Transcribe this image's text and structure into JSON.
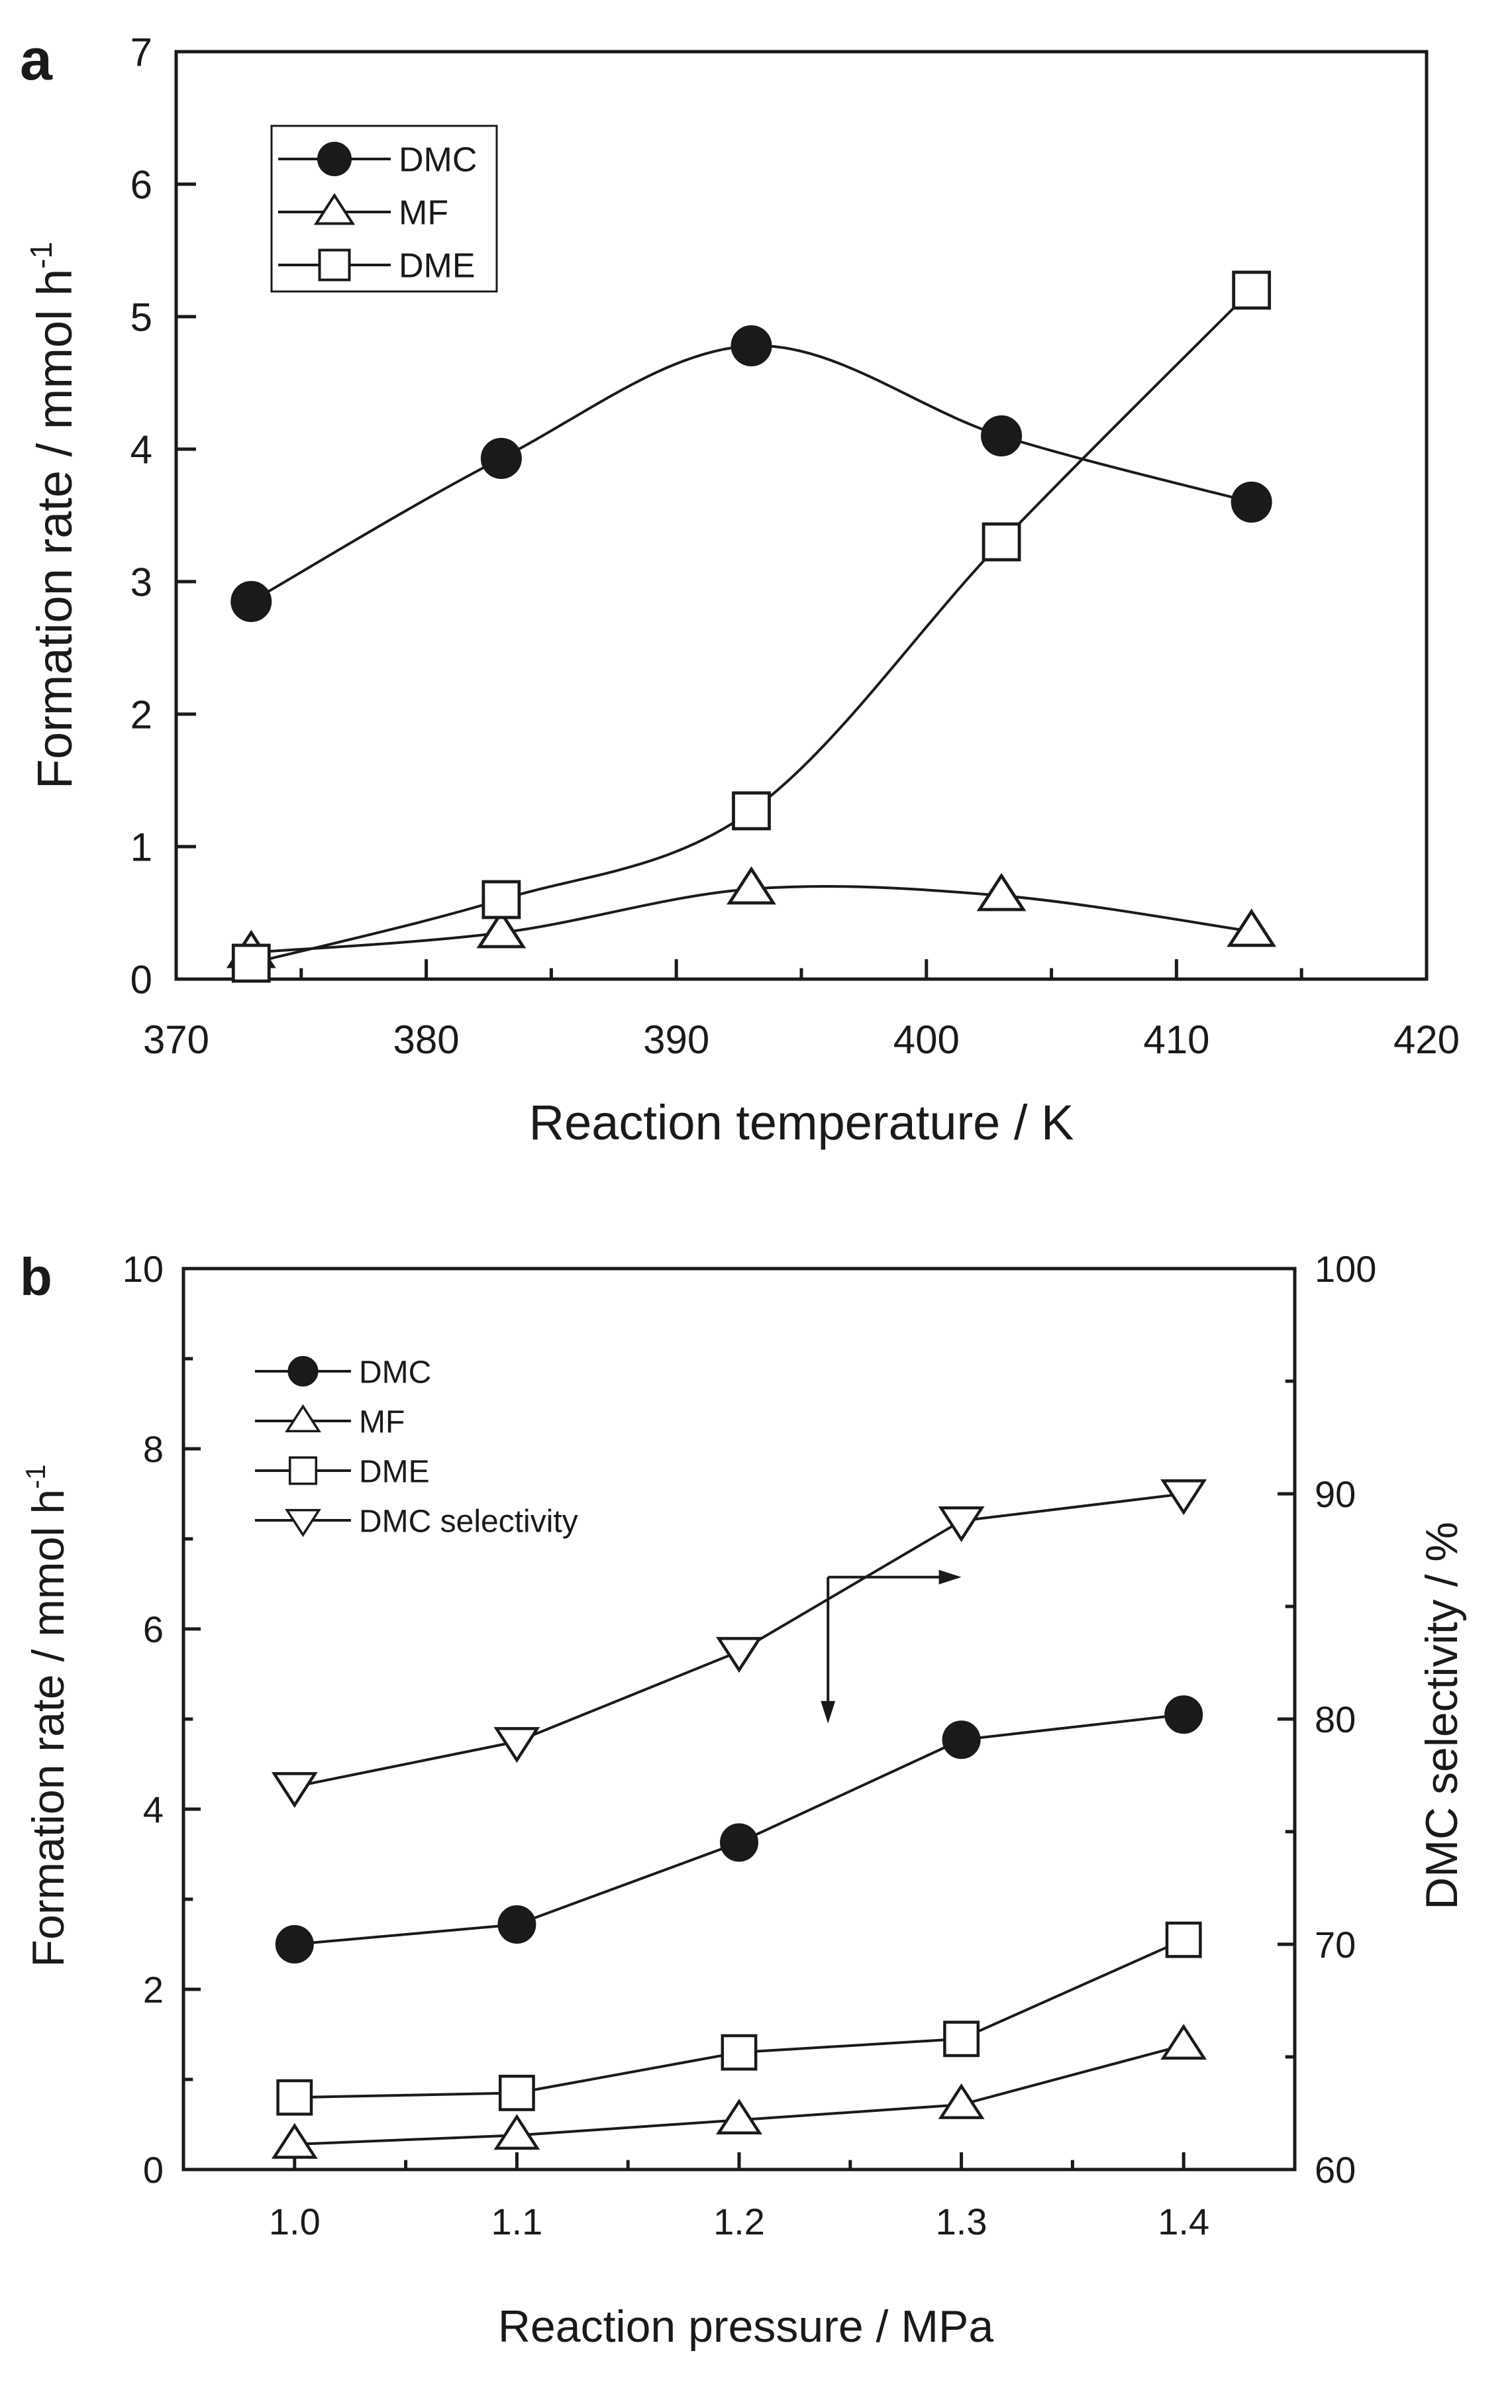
{
  "chart_data": [
    {
      "panel_label": "a",
      "type": "line",
      "xlabel": "Reaction temperature / K",
      "ylabel_main": "Formation rate / mmol h",
      "ylabel_sup": "-1",
      "xlim": [
        370,
        420
      ],
      "ylim": [
        0,
        7
      ],
      "xticks": [
        370,
        380,
        390,
        400,
        410,
        420
      ],
      "yticks": [
        0,
        1,
        2,
        3,
        4,
        5,
        6,
        7
      ],
      "grid": false,
      "legend_position": "top-left",
      "series": [
        {
          "name": "DMC",
          "marker": "filled-circle",
          "x": [
            373,
            383,
            393,
            403,
            413
          ],
          "y": [
            2.85,
            3.93,
            4.78,
            4.1,
            3.6
          ]
        },
        {
          "name": "MF",
          "marker": "open-triangle-up",
          "x": [
            373,
            383,
            393,
            403,
            413
          ],
          "y": [
            0.2,
            0.35,
            0.68,
            0.63,
            0.36
          ]
        },
        {
          "name": "DME",
          "marker": "open-square",
          "x": [
            373,
            383,
            393,
            403,
            413
          ],
          "y": [
            0.12,
            0.6,
            1.27,
            3.3,
            5.2
          ]
        }
      ]
    },
    {
      "panel_label": "b",
      "type": "line",
      "xlabel": "Reaction pressure / MPa",
      "ylabel_main": "Formation rate / mmol h",
      "ylabel_sup": "-1",
      "y2label": "DMC selectivity / %",
      "xlim": [
        0.95,
        1.45
      ],
      "ylim": [
        0,
        10
      ],
      "y2lim": [
        60,
        100
      ],
      "xticks": [
        "1.0",
        "1.1",
        "1.2",
        "1.3",
        "1.4"
      ],
      "yticks": [
        0,
        2,
        4,
        6,
        8,
        10
      ],
      "y2ticks": [
        60,
        70,
        80,
        90,
        100
      ],
      "grid": false,
      "legend_position": "top-left",
      "series": [
        {
          "name": "DMC",
          "marker": "filled-circle",
          "axis": "left",
          "x": [
            1.0,
            1.1,
            1.2,
            1.3,
            1.4
          ],
          "y": [
            2.5,
            2.72,
            3.63,
            4.77,
            5.05
          ]
        },
        {
          "name": "MF",
          "marker": "open-triangle-up",
          "axis": "left",
          "x": [
            1.0,
            1.1,
            1.2,
            1.3,
            1.4
          ],
          "y": [
            0.28,
            0.38,
            0.55,
            0.72,
            1.38
          ]
        },
        {
          "name": "DME",
          "marker": "open-square",
          "axis": "left",
          "x": [
            1.0,
            1.1,
            1.2,
            1.3,
            1.4
          ],
          "y": [
            0.8,
            0.85,
            1.3,
            1.45,
            2.55
          ]
        },
        {
          "name": "DMC selectivity",
          "marker": "open-triangle-down",
          "axis": "right",
          "x": [
            1.0,
            1.1,
            1.2,
            1.3,
            1.4
          ],
          "y": [
            77,
            79,
            83,
            88.8,
            90
          ]
        }
      ]
    }
  ],
  "colors": {
    "ink": "#1a1a1a",
    "background": "#ffffff"
  }
}
